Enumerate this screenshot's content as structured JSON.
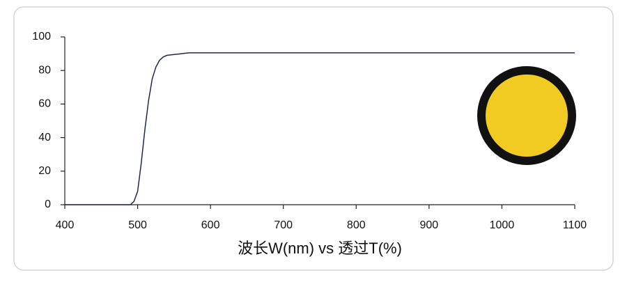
{
  "chart_data": {
    "type": "line",
    "x_label": "波长W(nm) vs 透过T(%)",
    "x": [
      400,
      480,
      490,
      495,
      500,
      505,
      510,
      515,
      520,
      525,
      530,
      535,
      540,
      550,
      560,
      570,
      600,
      700,
      800,
      900,
      1000,
      1100
    ],
    "values": [
      0,
      0,
      0,
      2,
      8,
      25,
      45,
      62,
      75,
      82,
      86,
      88,
      89,
      89.5,
      90,
      90.5,
      90.5,
      90.5,
      90.5,
      90.5,
      90.5,
      90.5
    ],
    "color": "#1f2a4a",
    "xlim": [
      400,
      1100
    ],
    "xticks": [
      400,
      500,
      600,
      700,
      800,
      900,
      1000,
      1100
    ],
    "ylim": [
      0,
      100
    ],
    "yticks": [
      0,
      20,
      40,
      60,
      80,
      100
    ]
  }
}
